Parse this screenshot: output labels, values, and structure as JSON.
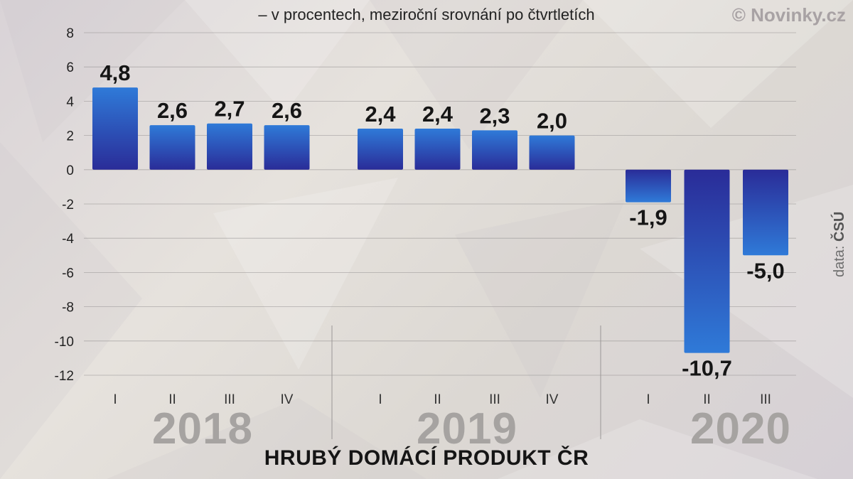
{
  "chart_data": {
    "type": "bar",
    "title": "HRUBÝ DOMÁCÍ PRODUKT ČR",
    "subtitle": "– v procentech, meziroční srovnání po čtvrtletích",
    "groups": [
      {
        "year": "2018",
        "quarters": [
          "I",
          "II",
          "III",
          "IV"
        ],
        "values": [
          4.8,
          2.6,
          2.7,
          2.6
        ],
        "labels": [
          "4,8",
          "2,6",
          "2,7",
          "2,6"
        ]
      },
      {
        "year": "2019",
        "quarters": [
          "I",
          "II",
          "III",
          "IV"
        ],
        "values": [
          2.4,
          2.4,
          2.3,
          2.0
        ],
        "labels": [
          "2,4",
          "2,4",
          "2,3",
          "2,0"
        ]
      },
      {
        "year": "2020",
        "quarters": [
          "I",
          "II",
          "III"
        ],
        "values": [
          -1.9,
          -10.7,
          -5.0
        ],
        "labels": [
          "-1,9",
          "-10,7",
          "-5,0"
        ]
      }
    ],
    "ylim": [
      -12,
      8
    ],
    "yticks": [
      8,
      6,
      4,
      2,
      0,
      -2,
      -4,
      -6,
      -8,
      -10,
      -12
    ],
    "grid": true,
    "legend": "none",
    "bar_color_top": "#2f78d6",
    "bar_color_bottom": "#2b2a9a"
  },
  "watermark": "© Novinky.cz",
  "source_prefix": "data:",
  "source_name": "ČSÚ"
}
